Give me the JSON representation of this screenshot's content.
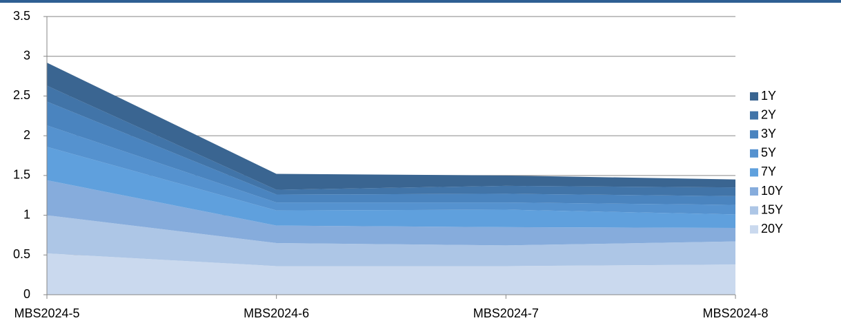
{
  "chart_data": {
    "type": "stacked_area",
    "categories": [
      "MBS2024-5",
      "MBS2024-6",
      "MBS2024-7",
      "MBS2024-8"
    ],
    "series": [
      {
        "name": "1Y",
        "color": "#3a6591",
        "values": [
          0.29,
          0.2,
          0.13,
          0.1
        ]
      },
      {
        "name": "2Y",
        "color": "#4174a8",
        "values": [
          0.2,
          0.06,
          0.1,
          0.11
        ]
      },
      {
        "name": "3Y",
        "color": "#4a84bf",
        "values": [
          0.3,
          0.1,
          0.11,
          0.11
        ]
      },
      {
        "name": "5Y",
        "color": "#5592cf",
        "values": [
          0.27,
          0.1,
          0.09,
          0.12
        ]
      },
      {
        "name": "7Y",
        "color": "#5fa0dd",
        "values": [
          0.42,
          0.19,
          0.22,
          0.17
        ]
      },
      {
        "name": "10Y",
        "color": "#86acdc",
        "values": [
          0.44,
          0.22,
          0.23,
          0.17
        ]
      },
      {
        "name": "15Y",
        "color": "#adc6e6",
        "values": [
          0.48,
          0.29,
          0.26,
          0.29
        ]
      },
      {
        "name": "20Y",
        "color": "#cad9ee",
        "values": [
          0.52,
          0.36,
          0.36,
          0.38
        ]
      }
    ],
    "ylim": [
      0,
      3.5
    ],
    "yticks": [
      0,
      0.5,
      1,
      1.5,
      2,
      2.5,
      3,
      3.5
    ],
    "grid": true,
    "legend": "right"
  }
}
